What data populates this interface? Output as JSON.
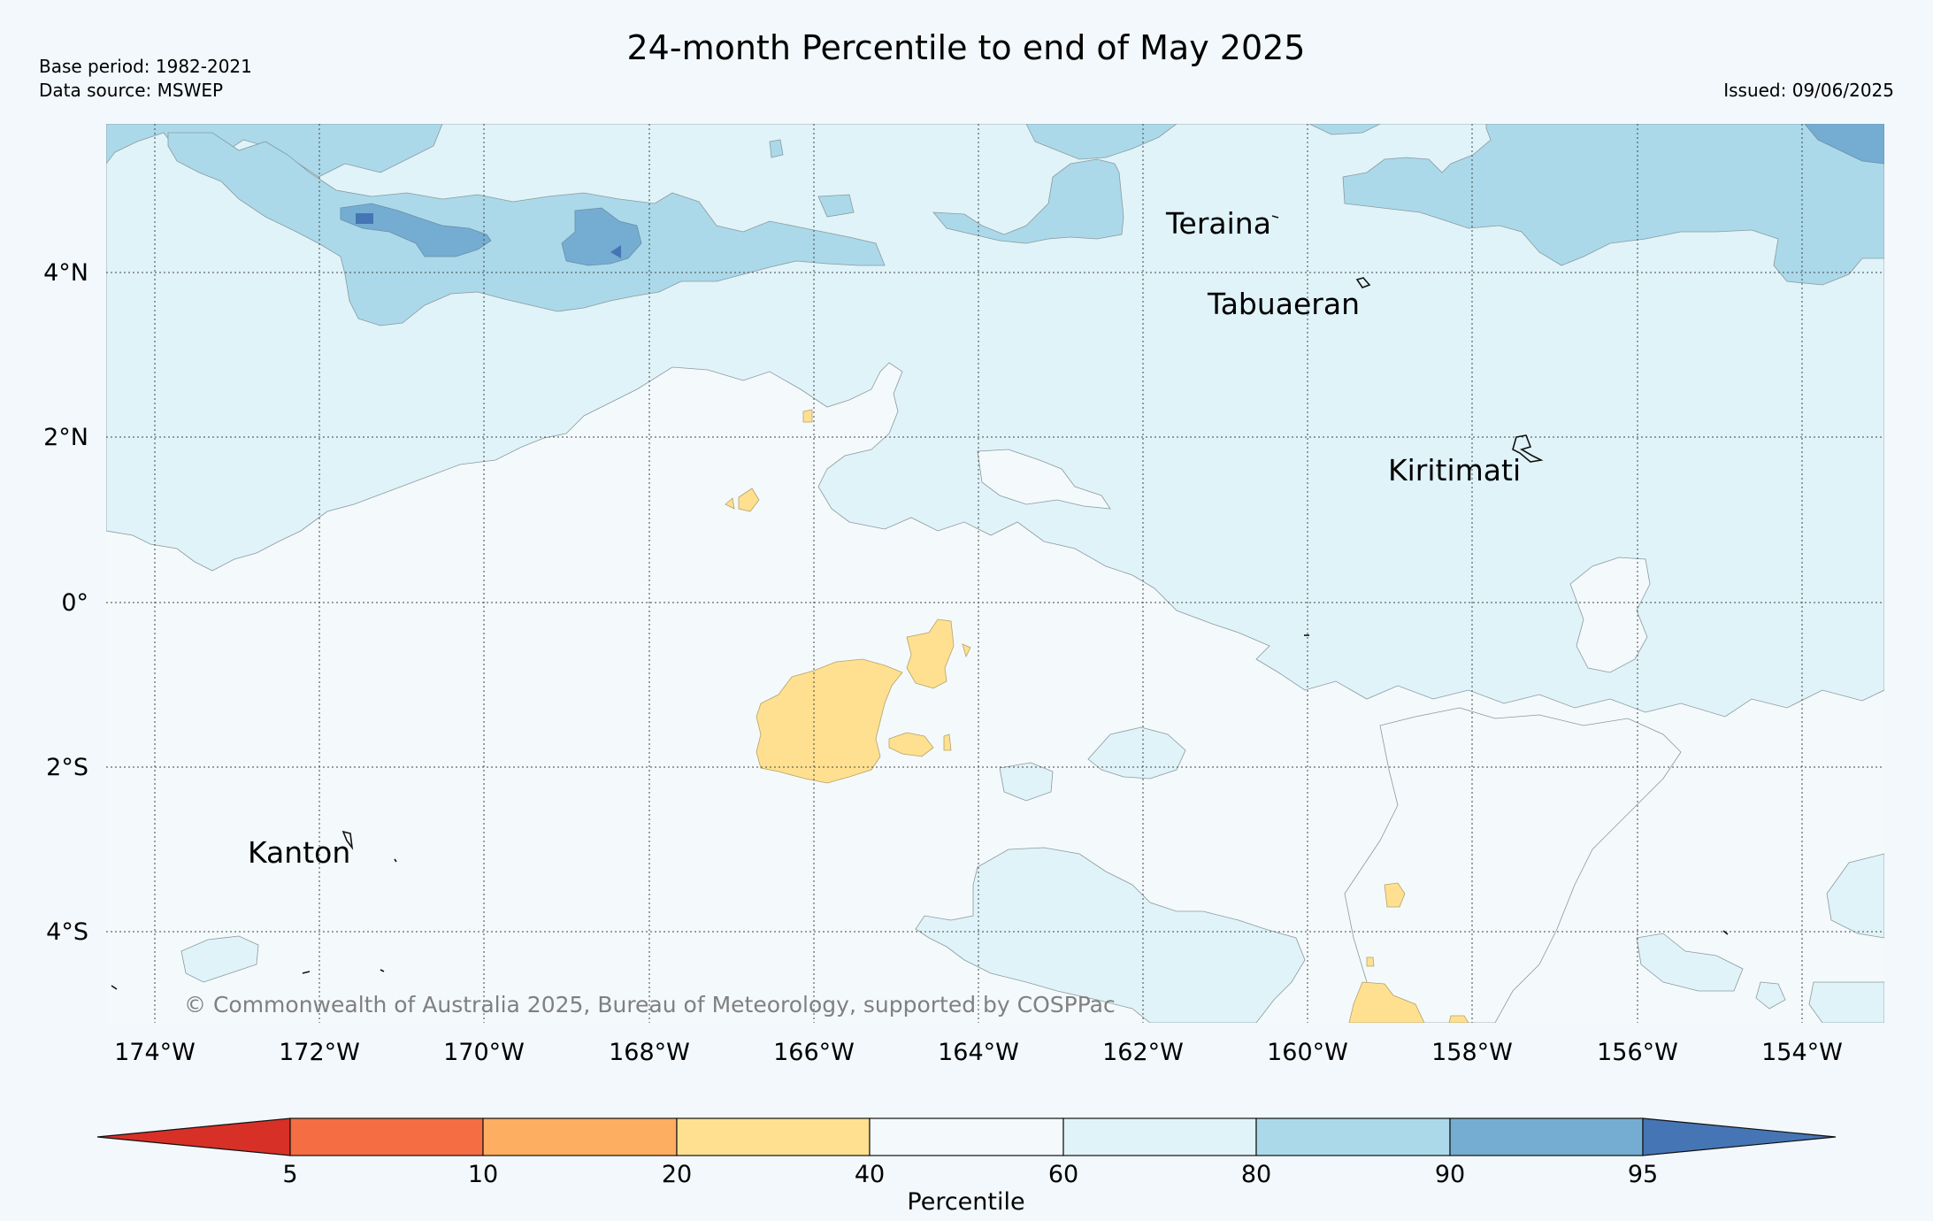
{
  "title": "24-month Percentile to end of May 2025",
  "base_period": "Base period: 1982-2021",
  "data_source": "Data source: MSWEP",
  "issued": "Issued: 09/06/2025",
  "copyright": "© Commonwealth of Australia 2025, Bureau of Meteorology, supported by COSPPac",
  "map": {
    "lon_ticks": [
      "174°W",
      "172°W",
      "170°W",
      "168°W",
      "166°W",
      "164°W",
      "162°W",
      "160°W",
      "158°W",
      "156°W",
      "154°W"
    ],
    "lat_ticks": [
      "4°N",
      "2°N",
      "0°",
      "2°S",
      "4°S"
    ],
    "places": [
      {
        "name": "Teraina"
      },
      {
        "name": "Tabuaeran"
      },
      {
        "name": "Kiritimati"
      },
      {
        "name": "Kanton"
      }
    ]
  },
  "colorbar": {
    "label": "Percentile",
    "ticks": [
      "5",
      "10",
      "20",
      "40",
      "60",
      "80",
      "90",
      "95"
    ],
    "bins": [
      {
        "range": "<5",
        "color": "#d73027"
      },
      {
        "range": "5-10",
        "color": "#f46d43"
      },
      {
        "range": "10-20",
        "color": "#fdae61"
      },
      {
        "range": "20-40",
        "color": "#fee090"
      },
      {
        "range": "40-60",
        "color": "#f4f9fb"
      },
      {
        "range": "60-80",
        "color": "#e0f3f8"
      },
      {
        "range": "80-90",
        "color": "#abd9e9"
      },
      {
        "range": "90-95",
        "color": "#74add1"
      },
      {
        "range": ">95",
        "color": "#4575b4"
      }
    ]
  }
}
